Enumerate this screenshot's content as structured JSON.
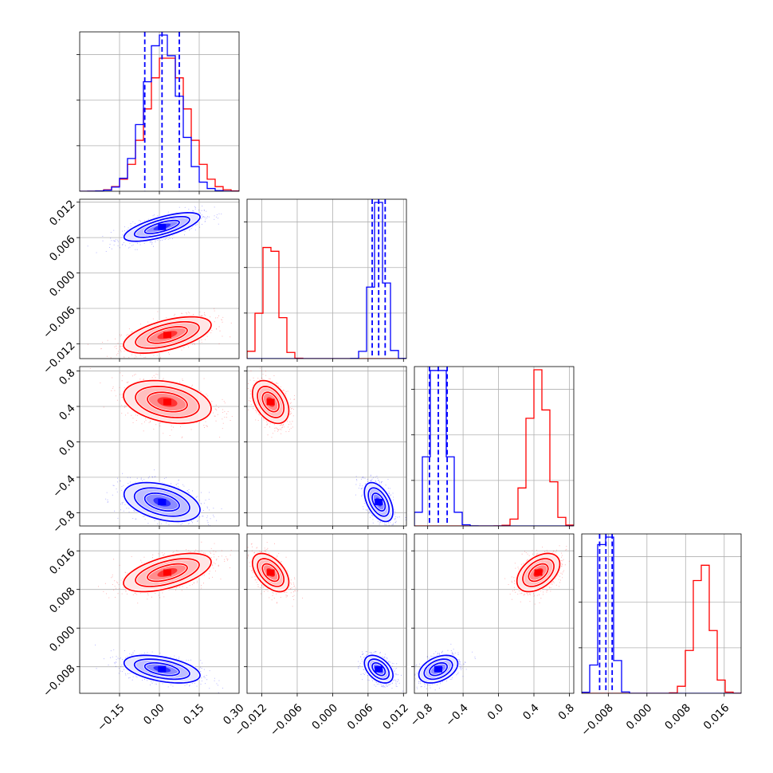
{
  "chart_data": {
    "type": "corner",
    "grid": true,
    "params": [
      {
        "lim": [
          -0.3,
          0.3
        ],
        "ticks": [
          -0.15,
          0.0,
          0.15,
          0.3
        ],
        "tick_labels": [
          "−0.15",
          "0.00",
          "0.15",
          "0.30"
        ],
        "axis_ticks": [
          -0.15,
          0.0,
          0.15
        ]
      },
      {
        "lim": [
          -0.0145,
          0.0125
        ],
        "ticks": [
          -0.012,
          -0.006,
          0.0,
          0.006,
          0.012
        ],
        "tick_labels": [
          "−0.012",
          "−0.006",
          "0.000",
          "0.006",
          "0.012"
        ]
      },
      {
        "lim": [
          -0.95,
          0.85
        ],
        "ticks": [
          -0.8,
          -0.4,
          0.0,
          0.4,
          0.8
        ],
        "tick_labels": [
          "−0.8",
          "−0.4",
          "0.0",
          "0.4",
          "0.8"
        ]
      },
      {
        "lim": [
          -0.0135,
          0.0195
        ],
        "ticks": [
          -0.008,
          0.0,
          0.008,
          0.016
        ],
        "tick_labels": [
          "−0.008",
          "0.000",
          "0.008",
          "0.016"
        ]
      }
    ],
    "series": [
      {
        "color": "#ff0000",
        "means": [
          0.03,
          -0.0105,
          0.45,
          0.0115
        ],
        "sds": [
          0.075,
          0.0014,
          0.11,
          0.0018
        ],
        "corr": [
          [
            1,
            0.55,
            -0.3,
            0.55
          ],
          [
            0.55,
            1,
            -0.4,
            -0.5
          ],
          [
            -0.3,
            -0.4,
            1,
            0.45
          ],
          [
            0.55,
            -0.5,
            0.45,
            1
          ]
        ],
        "quantile_lines": false
      },
      {
        "color": "#0000ff",
        "means": [
          0.01,
          0.0078,
          -0.68,
          -0.0085
        ],
        "sds": [
          0.065,
          0.0011,
          0.1,
          0.0013
        ],
        "corr": [
          [
            1,
            0.7,
            -0.4,
            -0.45
          ],
          [
            0.7,
            1,
            -0.5,
            -0.45
          ],
          [
            -0.4,
            -0.5,
            1,
            0.4
          ],
          [
            -0.45,
            -0.45,
            0.4,
            1
          ]
        ],
        "quantile_lines": true
      }
    ]
  }
}
